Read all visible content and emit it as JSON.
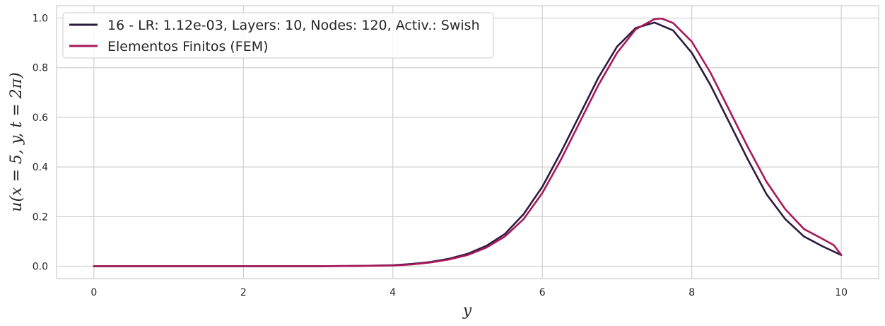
{
  "chart_data": {
    "type": "line",
    "title": "",
    "xlabel": "y",
    "ylabel": "u(x = 5, y, t = 2π)",
    "xlim": [
      -0.5,
      10.5
    ],
    "ylim": [
      -0.05,
      1.05
    ],
    "x_ticks": [
      0,
      2,
      4,
      6,
      8,
      10
    ],
    "y_ticks": [
      0.0,
      0.2,
      0.4,
      0.6,
      0.8,
      1.0
    ],
    "x_tick_labels": [
      "0",
      "2",
      "4",
      "6",
      "8",
      "10"
    ],
    "y_tick_labels": [
      "0.0",
      "0.2",
      "0.4",
      "0.6",
      "0.8",
      "1.0"
    ],
    "grid": true,
    "legend_position": "top-left",
    "series": [
      {
        "name": "16 - LR: 1.12e-03, Layers: 10, Nodes: 120, Activ.: Swish",
        "color": "#2d1a3f",
        "x": [
          0,
          1,
          2,
          3,
          3.5,
          4,
          4.25,
          4.5,
          4.75,
          5,
          5.25,
          5.5,
          5.75,
          6,
          6.25,
          6.5,
          6.75,
          7,
          7.25,
          7.5,
          7.75,
          8,
          8.25,
          8.5,
          8.75,
          9,
          9.25,
          9.5,
          9.75,
          10
        ],
        "y": [
          0,
          0,
          0,
          0,
          0.001,
          0.004,
          0.009,
          0.017,
          0.03,
          0.05,
          0.082,
          0.13,
          0.21,
          0.32,
          0.46,
          0.61,
          0.76,
          0.885,
          0.96,
          0.982,
          0.95,
          0.86,
          0.73,
          0.58,
          0.43,
          0.29,
          0.19,
          0.12,
          0.08,
          0.045
        ]
      },
      {
        "name": "Elementos Finitos (FEM)",
        "color": "#a8185a",
        "x": [
          0,
          1,
          2,
          3,
          3.5,
          4,
          4.25,
          4.5,
          4.75,
          5,
          5.25,
          5.5,
          5.75,
          6,
          6.25,
          6.5,
          6.75,
          7,
          7.25,
          7.5,
          7.6,
          7.75,
          8,
          8.25,
          8.5,
          8.75,
          9,
          9.25,
          9.5,
          9.75,
          9.9,
          10
        ],
        "y": [
          0,
          0,
          0,
          0,
          0.001,
          0.003,
          0.007,
          0.015,
          0.027,
          0.045,
          0.075,
          0.12,
          0.19,
          0.295,
          0.43,
          0.58,
          0.73,
          0.86,
          0.955,
          0.996,
          0.998,
          0.98,
          0.905,
          0.78,
          0.63,
          0.48,
          0.34,
          0.23,
          0.15,
          0.11,
          0.085,
          0.045
        ]
      }
    ]
  }
}
